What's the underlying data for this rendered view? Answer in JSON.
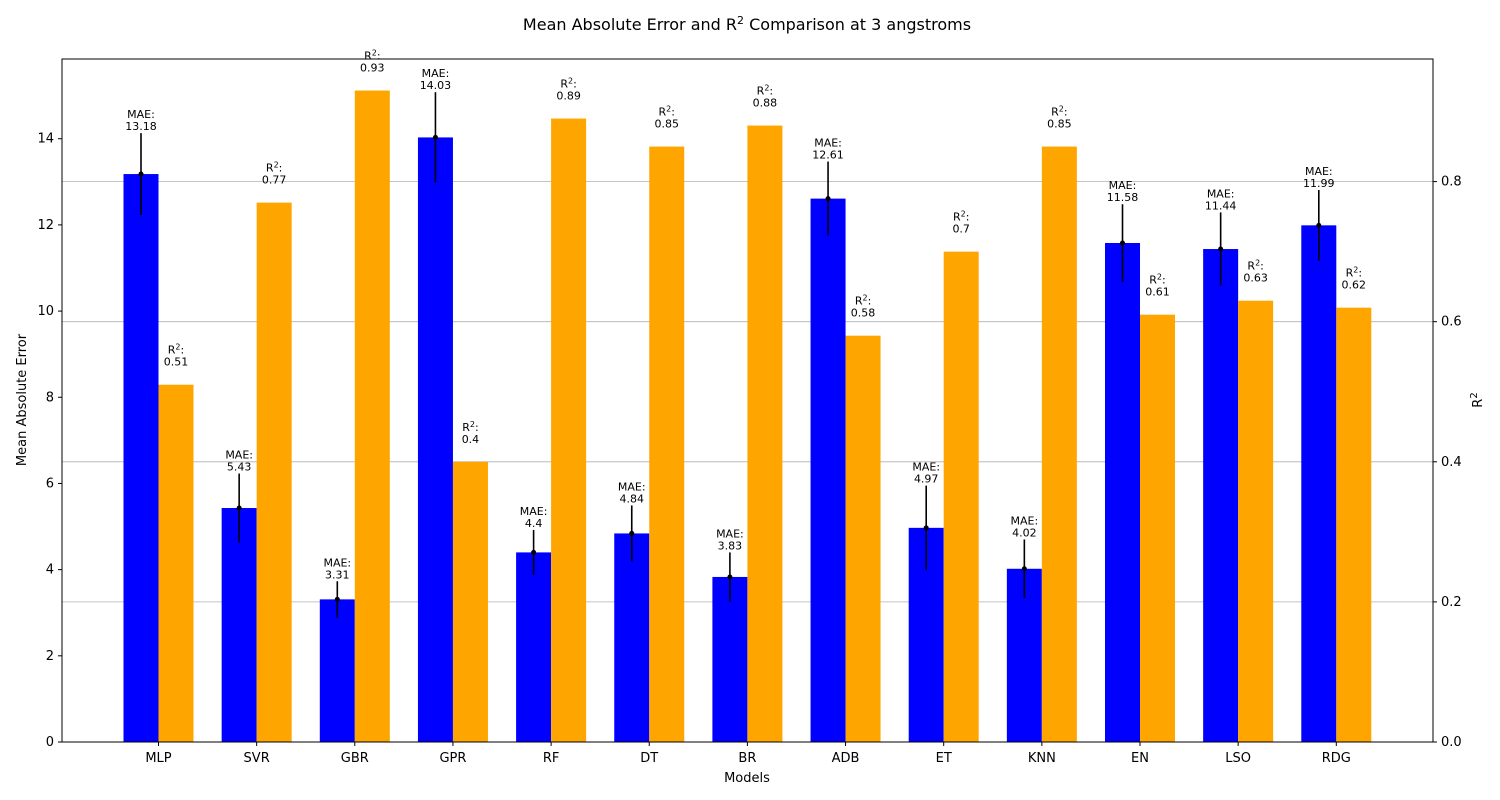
{
  "chart_data": {
    "type": "bar",
    "title_prefix": "Mean Absolute Error and R",
    "title_sup": "2",
    "title_suffix": " Comparison at 3 angstroms",
    "xlabel": "Models",
    "ylabel_left": "Mean Absolute Error",
    "ylabel_right_base": "R",
    "ylabel_right_sup": "2",
    "categories": [
      "MLP",
      "SVR",
      "GBR",
      "GPR",
      "RF",
      "DT",
      "BR",
      "ADB",
      "ET",
      "KNN",
      "EN",
      "LSO",
      "RDG"
    ],
    "mae": {
      "values": [
        13.18,
        5.43,
        3.31,
        14.03,
        4.4,
        4.84,
        3.83,
        12.61,
        4.97,
        4.02,
        11.58,
        11.44,
        11.99
      ],
      "errors": [
        0.95,
        0.8,
        0.42,
        1.05,
        0.52,
        0.65,
        0.57,
        0.86,
        0.98,
        0.68,
        0.9,
        0.85,
        0.82
      ],
      "color": "#0000ff",
      "label_prefix": "MAE:"
    },
    "r2": {
      "values": [
        0.51,
        0.77,
        0.93,
        0.4,
        0.89,
        0.85,
        0.88,
        0.58,
        0.7,
        0.85,
        0.61,
        0.63,
        0.62
      ],
      "color": "#ffa500",
      "label_base": "R",
      "label_sup": "2",
      "label_suffix": ":"
    },
    "ylim_left": [
      0,
      15.85
    ],
    "ylim_right": [
      0,
      0.975
    ],
    "yticks_left": [
      "0",
      "2",
      "4",
      "6",
      "8",
      "10",
      "12",
      "14"
    ],
    "yticks_right": [
      "0.0",
      "0.2",
      "0.4",
      "0.6",
      "0.8"
    ],
    "grid": "right-axis horizontal"
  }
}
